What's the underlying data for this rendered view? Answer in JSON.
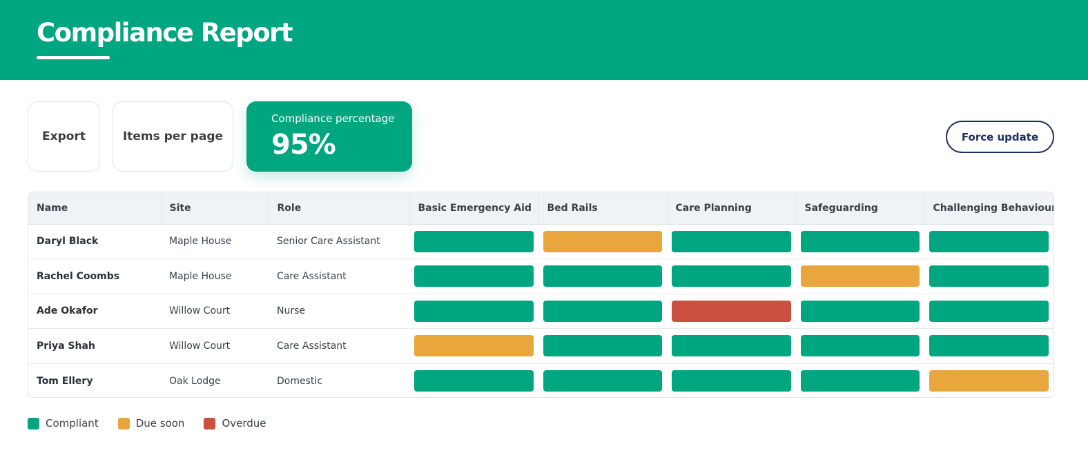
{
  "header": {
    "title": "Compliance Report"
  },
  "toolbar": {
    "export_label": "Export",
    "items_per_page_label": "Items per page",
    "force_update_label": "Force update"
  },
  "kpi": {
    "label": "Compliance percentage",
    "value": "95%"
  },
  "colors": {
    "accent": "#00a67f",
    "compliant": "#00a67f",
    "due_soon": "#e8a63d",
    "overdue": "#cc5040"
  },
  "table": {
    "columns": [
      "Name",
      "Site",
      "Role",
      "Basic Emergency Aid",
      "Bed Rails",
      "Care Planning",
      "Safeguarding",
      "Challenging Behaviour"
    ],
    "rows": [
      {
        "name": "Daryl Black",
        "site": "Maple House",
        "role": "Senior Care Assistant",
        "statuses": [
          "compliant",
          "due_soon",
          "compliant",
          "compliant",
          "compliant"
        ]
      },
      {
        "name": "Rachel Coombs",
        "site": "Maple House",
        "role": "Care Assistant",
        "statuses": [
          "compliant",
          "compliant",
          "compliant",
          "due_soon",
          "compliant"
        ]
      },
      {
        "name": "Ade Okafor",
        "site": "Willow Court",
        "role": "Nurse",
        "statuses": [
          "compliant",
          "compliant",
          "overdue",
          "compliant",
          "compliant"
        ]
      },
      {
        "name": "Priya Shah",
        "site": "Willow Court",
        "role": "Care Assistant",
        "statuses": [
          "due_soon",
          "compliant",
          "compliant",
          "compliant",
          "compliant"
        ]
      },
      {
        "name": "Tom Ellery",
        "site": "Oak Lodge",
        "role": "Domestic",
        "statuses": [
          "compliant",
          "compliant",
          "compliant",
          "compliant",
          "due_soon"
        ]
      }
    ]
  },
  "legend": [
    {
      "key": "compliant",
      "label": "Compliant"
    },
    {
      "key": "due_soon",
      "label": "Due soon"
    },
    {
      "key": "overdue",
      "label": "Overdue"
    }
  ]
}
